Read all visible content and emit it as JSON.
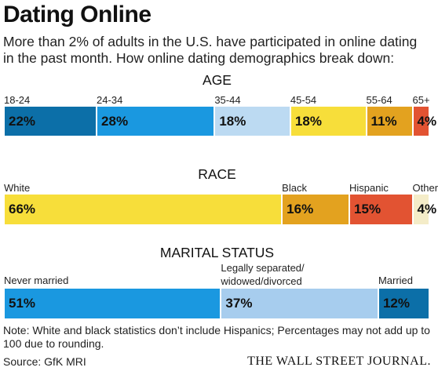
{
  "header": {
    "title": "Dating Online",
    "subtitle": "More than 2% of adults in the U.S. have participated in online dating in the past month. How online dating demographics break down:"
  },
  "chart_data": [
    {
      "type": "bar",
      "stacked": true,
      "title": "AGE",
      "categories": [
        "18-24",
        "24-34",
        "35-44",
        "45-54",
        "55-64",
        "65+"
      ],
      "values": [
        22,
        28,
        18,
        18,
        11,
        4
      ],
      "value_labels": [
        "22%",
        "28%",
        "18%",
        "18%",
        "11%",
        "4%"
      ],
      "colors": [
        "#0c6fa8",
        "#1a98e0",
        "#bcdaf2",
        "#f7de3a",
        "#e3a21f",
        "#e25332"
      ]
    },
    {
      "type": "bar",
      "stacked": true,
      "title": "RACE",
      "categories": [
        "White",
        "Black",
        "Hispanic",
        "Other"
      ],
      "values": [
        66,
        16,
        15,
        4
      ],
      "value_labels": [
        "66%",
        "16%",
        "15%",
        "4%"
      ],
      "colors": [
        "#f7de3a",
        "#e3a21f",
        "#e25332",
        "#f4ecc8"
      ]
    },
    {
      "type": "bar",
      "stacked": true,
      "title": "MARITAL STATUS",
      "categories": [
        "Never married",
        "Legally separated/ widowed/divorced",
        "Married"
      ],
      "values": [
        51,
        37,
        12
      ],
      "value_labels": [
        "51%",
        "37%",
        "12%"
      ],
      "colors": [
        "#1a98e0",
        "#a7cdee",
        "#0c6fa8"
      ]
    }
  ],
  "footer": {
    "note": "Note: White and black statistics don’t include Hispanics; Percentages may not add up to 100 due to rounding.",
    "source": "Source: GfK MRI",
    "brand": "THE WALL STREET JOURNAL."
  }
}
